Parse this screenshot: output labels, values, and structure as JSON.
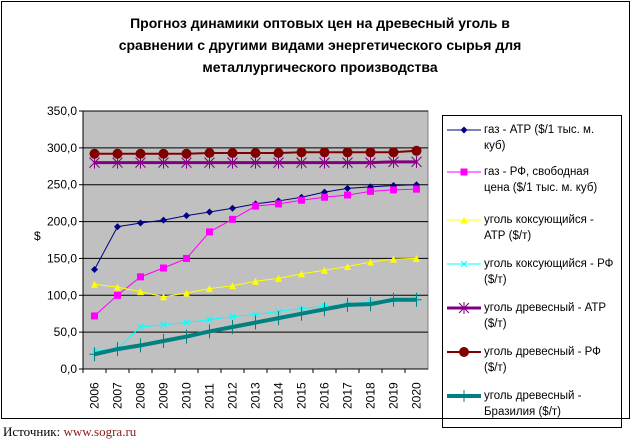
{
  "chart_data": {
    "type": "line",
    "title": "Прогноз динамики оптовых цен на древесный уголь в сравнении с другими видами энергетического сырья для металлургического производства",
    "title_lines": [
      "Прогноз динамики оптовых цен на древесный уголь в",
      "сравнении с другими видами энергетического сырья для",
      "металлургического производства"
    ],
    "xlabel": "",
    "ylabel": "$",
    "ylim": [
      0,
      350
    ],
    "yticks": [
      "0,0",
      "50,0",
      "100,0",
      "150,0",
      "200,0",
      "250,0",
      "300,0",
      "350,0"
    ],
    "grid": true,
    "legend_position": "right",
    "categories": [
      "2006",
      "2007",
      "2008",
      "2009",
      "2010",
      "2011",
      "2012",
      "2013",
      "2014",
      "2015",
      "2016",
      "2017",
      "2018",
      "2019",
      "2020"
    ],
    "series": [
      {
        "name": "газ - АТР ($/1 тыс. м. куб)",
        "color": "#000080",
        "marker": "diamond",
        "width": 1,
        "values": [
          135,
          193,
          198,
          202,
          208,
          213,
          218,
          224,
          228,
          233,
          240,
          245,
          247,
          249,
          250
        ]
      },
      {
        "name": "газ - РФ, свободная цена ($/1 тыс. м. куб)",
        "color": "#ff00ff",
        "marker": "square",
        "width": 1,
        "values": [
          72,
          100,
          125,
          137,
          150,
          186,
          203,
          221,
          224,
          229,
          233,
          236,
          241,
          243,
          244
        ]
      },
      {
        "name": "уголь коксующийся  - АТР ($/т)",
        "color": "#ffff00",
        "marker": "triangle",
        "width": 1,
        "values": [
          115,
          111,
          105,
          98,
          103,
          109,
          113,
          119,
          123,
          129,
          134,
          139,
          145,
          149,
          150
        ]
      },
      {
        "name": "уголь коксующийся - РФ ($/т)",
        "color": "#00ffff",
        "marker": "x",
        "width": 1,
        "values": [
          24,
          28,
          57,
          60,
          63,
          67,
          71,
          74,
          78,
          82,
          85,
          88,
          91,
          94,
          95
        ]
      },
      {
        "name": "уголь древесный - АТР ($/т)",
        "color": "#800080",
        "marker": "star",
        "width": 3,
        "values": [
          280,
          280,
          280,
          280,
          280,
          280,
          280,
          280,
          280,
          280,
          280,
          280,
          280,
          281,
          281
        ]
      },
      {
        "name": "уголь древесный - РФ ($/т)",
        "color": "#800000",
        "marker": "circle",
        "width": 2,
        "values": [
          292,
          292,
          292,
          292,
          292,
          293,
          293,
          293,
          293,
          294,
          294,
          294,
          294,
          294,
          296
        ]
      },
      {
        "name": "уголь древесный - Бразилия ($/т)",
        "color": "#008080",
        "marker": "plus",
        "width": 4,
        "values": [
          20,
          27,
          32,
          38,
          44,
          51,
          57,
          63,
          69,
          75,
          81,
          87,
          88,
          94,
          94
        ]
      }
    ]
  },
  "source": {
    "label": "Источник: ",
    "link": "www.sogra.ru"
  }
}
